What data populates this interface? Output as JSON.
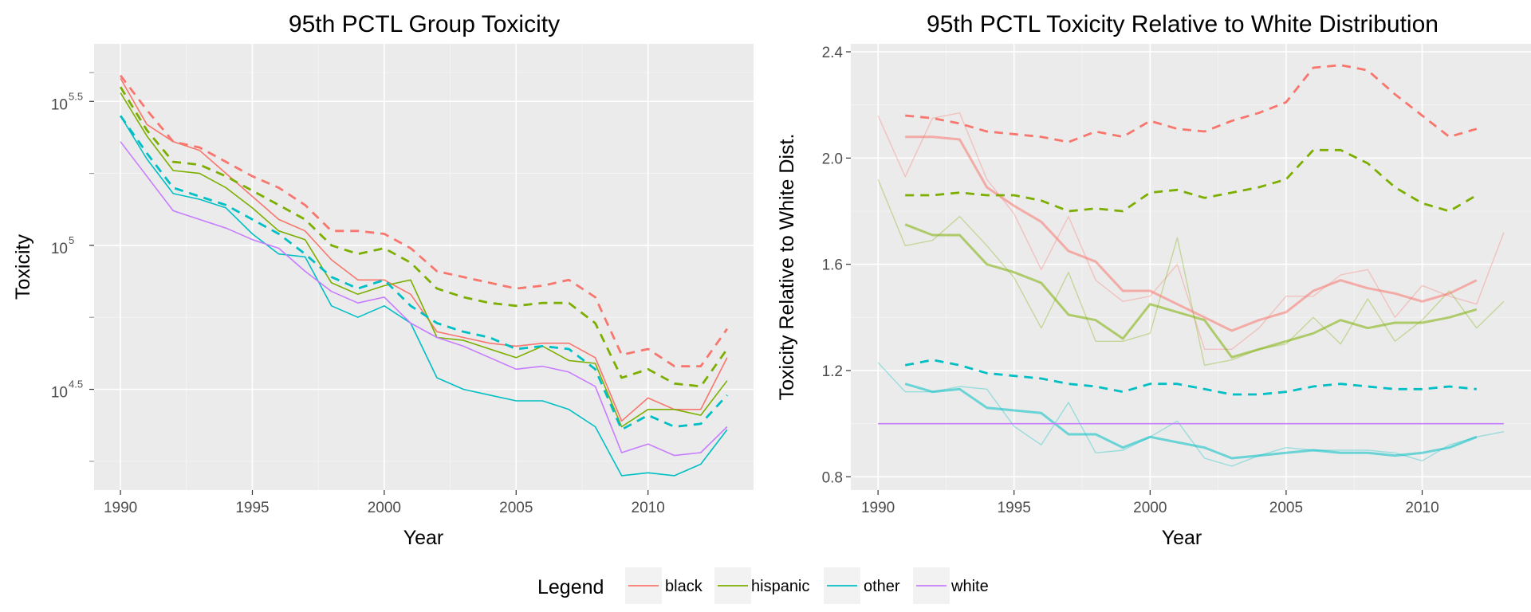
{
  "colors": {
    "black": "#f8766d",
    "hispanic": "#7cae00",
    "other": "#00bfc4",
    "white": "#c77cff"
  },
  "legend": {
    "title": "Legend",
    "entries": [
      {
        "key": "black",
        "label": "black"
      },
      {
        "key": "hispanic",
        "label": "hispanic"
      },
      {
        "key": "other",
        "label": "other"
      },
      {
        "key": "white",
        "label": "white"
      }
    ]
  },
  "chart_data": [
    {
      "type": "line",
      "title": "95th PCTL Group Toxicity",
      "xlabel": "Year",
      "ylabel": "Toxicity",
      "xlim": [
        1989,
        2014
      ],
      "y_scale": "log10",
      "ylim_log10": [
        4.15,
        5.7
      ],
      "x_ticks": [
        1990,
        1995,
        2000,
        2005,
        2010
      ],
      "y_ticks": [
        {
          "value": 4.5,
          "base": "10",
          "exp": "4.5"
        },
        {
          "value": 5.0,
          "base": "10",
          "exp": "5"
        },
        {
          "value": 5.5,
          "base": "10",
          "exp": "5.5"
        }
      ],
      "x": [
        1990,
        1991,
        1992,
        1993,
        1994,
        1995,
        1996,
        1997,
        1998,
        1999,
        2000,
        2001,
        2002,
        2003,
        2004,
        2005,
        2006,
        2007,
        2008,
        2009,
        2010,
        2011,
        2012,
        2013
      ],
      "series": [
        {
          "group": "black",
          "style": "solid",
          "log10_values": [
            5.58,
            5.42,
            5.36,
            5.33,
            5.25,
            5.17,
            5.09,
            5.05,
            4.95,
            4.88,
            4.88,
            4.83,
            4.7,
            4.68,
            4.66,
            4.65,
            4.66,
            4.66,
            4.61,
            4.39,
            4.47,
            4.43,
            4.43,
            4.61
          ]
        },
        {
          "group": "hispanic",
          "style": "solid",
          "log10_values": [
            5.53,
            5.38,
            5.26,
            5.25,
            5.2,
            5.13,
            5.05,
            5.02,
            4.87,
            4.83,
            4.86,
            4.88,
            4.68,
            4.67,
            4.64,
            4.61,
            4.65,
            4.6,
            4.59,
            4.37,
            4.43,
            4.43,
            4.41,
            4.53
          ]
        },
        {
          "group": "other",
          "style": "solid",
          "log10_values": [
            5.45,
            5.3,
            5.18,
            5.16,
            5.13,
            5.04,
            4.97,
            4.96,
            4.79,
            4.75,
            4.79,
            4.73,
            4.54,
            4.5,
            4.48,
            4.46,
            4.46,
            4.43,
            4.37,
            4.2,
            4.21,
            4.2,
            4.24,
            4.36
          ]
        },
        {
          "group": "white",
          "style": "solid",
          "log10_values": [
            5.36,
            5.24,
            5.12,
            5.09,
            5.06,
            5.02,
            4.99,
            4.91,
            4.84,
            4.8,
            4.82,
            4.73,
            4.68,
            4.65,
            4.61,
            4.57,
            4.58,
            4.56,
            4.51,
            4.28,
            4.31,
            4.27,
            4.28,
            4.37
          ]
        },
        {
          "group": "black",
          "style": "dashed",
          "log10_values": [
            5.59,
            5.47,
            5.36,
            5.34,
            5.29,
            5.24,
            5.2,
            5.14,
            5.05,
            5.05,
            5.04,
            4.99,
            4.91,
            4.89,
            4.87,
            4.85,
            4.86,
            4.88,
            4.82,
            4.62,
            4.64,
            4.58,
            4.58,
            4.71
          ]
        },
        {
          "group": "hispanic",
          "style": "dashed",
          "log10_values": [
            5.55,
            5.4,
            5.29,
            5.28,
            5.24,
            5.19,
            5.14,
            5.09,
            5.0,
            4.97,
            4.99,
            4.94,
            4.85,
            4.82,
            4.8,
            4.79,
            4.8,
            4.8,
            4.73,
            4.54,
            4.57,
            4.52,
            4.51,
            4.64
          ]
        },
        {
          "group": "other",
          "style": "dashed",
          "log10_values": [
            5.45,
            5.32,
            5.2,
            5.17,
            5.14,
            5.09,
            5.04,
            4.97,
            4.89,
            4.85,
            4.88,
            4.79,
            4.73,
            4.7,
            4.68,
            4.64,
            4.65,
            4.64,
            4.57,
            4.36,
            4.41,
            4.37,
            4.38,
            4.48
          ]
        }
      ]
    },
    {
      "type": "line",
      "title": "95th PCTL Toxicity Relative to White Distribution",
      "xlabel": "Year",
      "ylabel": "Toxicity Relative to White Dist.",
      "xlim": [
        1989,
        2014
      ],
      "ylim": [
        0.75,
        2.43
      ],
      "x_ticks": [
        1990,
        1995,
        2000,
        2005,
        2010
      ],
      "y_ticks": [
        "0.8",
        "1.2",
        "1.6",
        "2.0",
        "2.4"
      ],
      "series": [
        {
          "group": "black",
          "style": "dashed",
          "x": [
            1991,
            1992,
            1993,
            1994,
            1995,
            1996,
            1997,
            1998,
            1999,
            2000,
            2001,
            2002,
            2003,
            2004,
            2005,
            2006,
            2007,
            2008,
            2009,
            2010,
            2011,
            2012
          ],
          "values": [
            2.16,
            2.15,
            2.13,
            2.1,
            2.09,
            2.08,
            2.06,
            2.1,
            2.08,
            2.14,
            2.11,
            2.1,
            2.14,
            2.17,
            2.21,
            2.34,
            2.35,
            2.33,
            2.24,
            2.16,
            2.08,
            2.11
          ]
        },
        {
          "group": "hispanic",
          "style": "dashed",
          "x": [
            1991,
            1992,
            1993,
            1994,
            1995,
            1996,
            1997,
            1998,
            1999,
            2000,
            2001,
            2002,
            2003,
            2004,
            2005,
            2006,
            2007,
            2008,
            2009,
            2010,
            2011,
            2012
          ],
          "values": [
            1.86,
            1.86,
            1.87,
            1.86,
            1.86,
            1.84,
            1.8,
            1.81,
            1.8,
            1.87,
            1.88,
            1.85,
            1.87,
            1.89,
            1.92,
            2.03,
            2.03,
            1.98,
            1.89,
            1.83,
            1.8,
            1.86
          ]
        },
        {
          "group": "other",
          "style": "dashed",
          "x": [
            1991,
            1992,
            1993,
            1994,
            1995,
            1996,
            1997,
            1998,
            1999,
            2000,
            2001,
            2002,
            2003,
            2004,
            2005,
            2006,
            2007,
            2008,
            2009,
            2010,
            2011,
            2012
          ],
          "values": [
            1.22,
            1.24,
            1.22,
            1.19,
            1.18,
            1.17,
            1.15,
            1.14,
            1.12,
            1.15,
            1.15,
            1.13,
            1.11,
            1.11,
            1.12,
            1.14,
            1.15,
            1.14,
            1.13,
            1.13,
            1.14,
            1.13
          ]
        },
        {
          "group": "black",
          "style": "smooth",
          "x": [
            1991,
            1992,
            1993,
            1994,
            1995,
            1996,
            1997,
            1998,
            1999,
            2000,
            2001,
            2002,
            2003,
            2004,
            2005,
            2006,
            2007,
            2008,
            2009,
            2010,
            2011,
            2012
          ],
          "values": [
            2.08,
            2.08,
            2.07,
            1.89,
            1.82,
            1.76,
            1.65,
            1.61,
            1.5,
            1.5,
            1.45,
            1.4,
            1.35,
            1.39,
            1.42,
            1.5,
            1.54,
            1.51,
            1.49,
            1.46,
            1.49,
            1.54
          ]
        },
        {
          "group": "hispanic",
          "style": "smooth",
          "x": [
            1991,
            1992,
            1993,
            1994,
            1995,
            1996,
            1997,
            1998,
            1999,
            2000,
            2001,
            2002,
            2003,
            2004,
            2005,
            2006,
            2007,
            2008,
            2009,
            2010,
            2011,
            2012
          ],
          "values": [
            1.75,
            1.71,
            1.71,
            1.6,
            1.57,
            1.53,
            1.41,
            1.39,
            1.32,
            1.45,
            1.42,
            1.39,
            1.25,
            1.28,
            1.31,
            1.34,
            1.39,
            1.36,
            1.38,
            1.38,
            1.4,
            1.43
          ]
        },
        {
          "group": "other",
          "style": "smooth",
          "x": [
            1991,
            1992,
            1993,
            1994,
            1995,
            1996,
            1997,
            1998,
            1999,
            2000,
            2001,
            2002,
            2003,
            2004,
            2005,
            2006,
            2007,
            2008,
            2009,
            2010,
            2011,
            2012
          ],
          "values": [
            1.15,
            1.12,
            1.13,
            1.06,
            1.05,
            1.04,
            0.96,
            0.96,
            0.91,
            0.95,
            0.93,
            0.91,
            0.87,
            0.88,
            0.89,
            0.9,
            0.89,
            0.89,
            0.88,
            0.89,
            0.91,
            0.95
          ]
        },
        {
          "group": "black",
          "style": "raw",
          "x": [
            1990,
            1991,
            1992,
            1993,
            1994,
            1995,
            1996,
            1997,
            1998,
            1999,
            2000,
            2001,
            2002,
            2003,
            2004,
            2005,
            2006,
            2007,
            2008,
            2009,
            2010,
            2011,
            2012,
            2013
          ],
          "values": [
            2.16,
            1.93,
            2.15,
            2.17,
            1.92,
            1.79,
            1.58,
            1.78,
            1.54,
            1.46,
            1.48,
            1.6,
            1.28,
            1.28,
            1.36,
            1.48,
            1.48,
            1.56,
            1.58,
            1.4,
            1.52,
            1.48,
            1.45,
            1.72
          ]
        },
        {
          "group": "hispanic",
          "style": "raw",
          "x": [
            1990,
            1991,
            1992,
            1993,
            1994,
            1995,
            1996,
            1997,
            1998,
            1999,
            2000,
            2001,
            2002,
            2003,
            2004,
            2005,
            2006,
            2007,
            2008,
            2009,
            2010,
            2011,
            2012,
            2013
          ],
          "values": [
            1.92,
            1.67,
            1.69,
            1.78,
            1.67,
            1.55,
            1.36,
            1.57,
            1.31,
            1.31,
            1.34,
            1.7,
            1.22,
            1.24,
            1.28,
            1.3,
            1.4,
            1.3,
            1.47,
            1.31,
            1.39,
            1.5,
            1.36,
            1.46
          ]
        },
        {
          "group": "other",
          "style": "raw",
          "x": [
            1990,
            1991,
            1992,
            1993,
            1994,
            1995,
            1996,
            1997,
            1998,
            1999,
            2000,
            2001,
            2002,
            2003,
            2004,
            2005,
            2006,
            2007,
            2008,
            2009,
            2010,
            2011,
            2012,
            2013
          ],
          "values": [
            1.23,
            1.12,
            1.12,
            1.14,
            1.13,
            0.99,
            0.92,
            1.08,
            0.89,
            0.9,
            0.95,
            1.01,
            0.87,
            0.84,
            0.88,
            0.91,
            0.9,
            0.9,
            0.9,
            0.89,
            0.86,
            0.92,
            0.95,
            0.97
          ]
        },
        {
          "group": "white",
          "style": "solid",
          "x": [
            1990,
            2013
          ],
          "values": [
            1.0,
            1.0
          ]
        }
      ]
    }
  ]
}
